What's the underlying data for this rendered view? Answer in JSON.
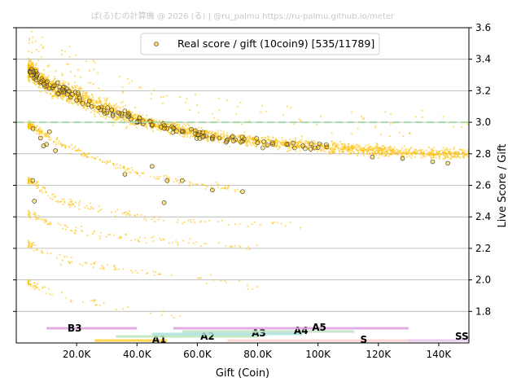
{
  "watermark": "ぱ(る)むの計算機 @ 2026 (る) | @ru_palmu  https://ru-palmu.github.io/meter",
  "chart_data": {
    "type": "scatter",
    "xlabel": "Gift (Coin)",
    "ylabel": "Live Score / Gift",
    "xlim": [
      0,
      150000
    ],
    "ylim": [
      1.6,
      3.6
    ],
    "x_ticks": [
      20000,
      40000,
      60000,
      80000,
      100000,
      120000,
      140000
    ],
    "x_tick_labels": [
      "20.0K",
      "40.0K",
      "60.0K",
      "80.0K",
      "100K",
      "120K",
      "140K"
    ],
    "y_ticks": [
      1.8,
      2.0,
      2.2,
      2.4,
      2.6,
      2.8,
      3.0,
      3.2,
      3.4,
      3.6
    ],
    "y_tick_labels": [
      "1.8",
      "2.0",
      "2.2",
      "2.4",
      "2.6",
      "2.8",
      "3.0",
      "3.2",
      "3.4",
      "3.6"
    ],
    "y_axis_side": "right",
    "grid": "horizontal",
    "reference_line": {
      "y": 3.0,
      "style": "dashed",
      "color": "#a8d8a8"
    },
    "legend": {
      "position": "top-center",
      "label": "Real score / gift (10coin9) [535/11789]"
    },
    "series": [
      {
        "name": "Real score / gift (10coin9) [535/11789]",
        "color": "#ffc000",
        "highlight_count": 535,
        "total_count": 11789,
        "trend": [
          [
            5000,
            3.33
          ],
          [
            8000,
            3.27
          ],
          [
            12000,
            3.22
          ],
          [
            15000,
            3.2
          ],
          [
            20000,
            3.17
          ],
          [
            25000,
            3.12
          ],
          [
            30000,
            3.08
          ],
          [
            35000,
            3.05
          ],
          [
            40000,
            3.02
          ],
          [
            45000,
            2.99
          ],
          [
            50000,
            2.97
          ],
          [
            60000,
            2.93
          ],
          [
            70000,
            2.9
          ],
          [
            80000,
            2.88
          ],
          [
            90000,
            2.86
          ],
          [
            100000,
            2.85
          ],
          [
            110000,
            2.83
          ],
          [
            120000,
            2.82
          ],
          [
            130000,
            2.81
          ],
          [
            140000,
            2.8
          ],
          [
            150000,
            2.8
          ]
        ],
        "lower_branches": [
          [
            [
              5000,
              2.98
            ],
            [
              10000,
              2.92
            ],
            [
              15000,
              2.86
            ],
            [
              25000,
              2.78
            ],
            [
              40000,
              2.68
            ],
            [
              55000,
              2.62
            ],
            [
              75000,
              2.57
            ]
          ],
          [
            [
              5000,
              2.63
            ],
            [
              10000,
              2.56
            ],
            [
              15000,
              2.5
            ],
            [
              30000,
              2.44
            ],
            [
              50000,
              2.38
            ],
            [
              70000,
              2.36
            ],
            [
              95000,
              2.34
            ]
          ],
          [
            [
              5000,
              2.42
            ],
            [
              10000,
              2.36
            ],
            [
              20000,
              2.31
            ],
            [
              35000,
              2.27
            ],
            [
              55000,
              2.24
            ],
            [
              80000,
              2.2
            ]
          ],
          [
            [
              5000,
              2.22
            ],
            [
              10000,
              2.16
            ],
            [
              20000,
              2.11
            ],
            [
              35000,
              2.07
            ],
            [
              55000,
              2.02
            ],
            [
              80000,
              1.95
            ]
          ],
          [
            [
              5000,
              1.98
            ],
            [
              10000,
              1.92
            ],
            [
              20000,
              1.88
            ],
            [
              35000,
              1.82
            ],
            [
              55000,
              1.78
            ]
          ]
        ],
        "highlighted_points": [
          [
            5000,
            3.3
          ],
          [
            6000,
            3.28
          ],
          [
            8000,
            3.25
          ],
          [
            10000,
            3.23
          ],
          [
            12000,
            3.22
          ],
          [
            14000,
            3.18
          ],
          [
            16000,
            3.2
          ],
          [
            18000,
            3.16
          ],
          [
            20000,
            3.14
          ],
          [
            22000,
            3.12
          ],
          [
            25000,
            3.1
          ],
          [
            28000,
            3.08
          ],
          [
            30000,
            3.06
          ],
          [
            32000,
            3.05
          ],
          [
            35000,
            3.04
          ],
          [
            38000,
            3.02
          ],
          [
            40000,
            3.0
          ],
          [
            42000,
            2.99
          ],
          [
            45000,
            2.98
          ],
          [
            48000,
            2.97
          ],
          [
            50000,
            2.96
          ],
          [
            55000,
            2.94
          ],
          [
            60000,
            2.92
          ],
          [
            65000,
            2.9
          ],
          [
            70000,
            2.89
          ],
          [
            75000,
            2.88
          ],
          [
            80000,
            2.87
          ],
          [
            85000,
            2.86
          ],
          [
            90000,
            2.86
          ],
          [
            95000,
            2.85
          ],
          [
            100000,
            2.84
          ],
          [
            118000,
            2.78
          ],
          [
            128000,
            2.77
          ],
          [
            138000,
            2.75
          ],
          [
            143000,
            2.74
          ],
          [
            5500,
            2.96
          ],
          [
            8000,
            2.9
          ],
          [
            10000,
            2.86
          ],
          [
            13000,
            2.82
          ],
          [
            36000,
            2.67
          ],
          [
            50000,
            2.63
          ],
          [
            55000,
            2.63
          ],
          [
            65000,
            2.57
          ],
          [
            75000,
            2.56
          ],
          [
            49000,
            2.49
          ],
          [
            5500,
            2.63
          ],
          [
            6000,
            2.5
          ],
          [
            9000,
            2.85
          ],
          [
            11000,
            2.94
          ],
          [
            45000,
            2.72
          ]
        ]
      }
    ],
    "rank_bands": [
      {
        "label": "B3",
        "x_start": 10000,
        "x_end": 40000,
        "color": "#dba0dc"
      },
      {
        "label": "A1",
        "x_start": 26000,
        "x_end": 50000,
        "color": "#ffcc33"
      },
      {
        "label": "A2",
        "x_start": 33000,
        "x_end": 80000,
        "color": "#b8e8b8"
      },
      {
        "label": "A3",
        "x_start": 45000,
        "x_end": 95000,
        "color": "#a8e0e0"
      },
      {
        "label": "A4",
        "x_start": 55000,
        "x_end": 112000,
        "color": "#bfe0bf"
      },
      {
        "label": "A5",
        "x_start": 52000,
        "x_end": 130000,
        "color": "#dba0dc"
      },
      {
        "label": "S",
        "x_start": 70000,
        "x_end": 145000,
        "color": "#ffcccc"
      },
      {
        "label": "SS",
        "x_start": 130000,
        "x_end": 150000,
        "color": "#e8c8f0"
      }
    ]
  }
}
